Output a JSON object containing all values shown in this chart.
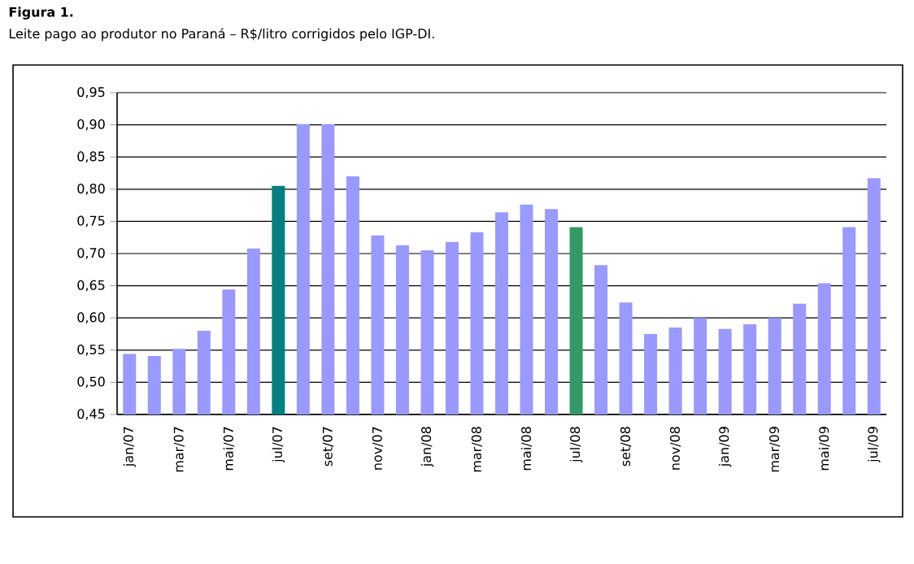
{
  "chart_data": {
    "type": "bar",
    "title": "Figura 1.",
    "subtitle": "Leite pago ao produtor no Paraná – R$/litro corrigidos pelo IGP-DI.",
    "categories": [
      "jan/07",
      null,
      "mar/07",
      null,
      "mai/07",
      null,
      "jul/07",
      null,
      "set/07",
      null,
      "nov/07",
      null,
      "jan/08",
      null,
      "mar/08",
      null,
      "mai/08",
      null,
      "jul/08",
      null,
      "set/08",
      null,
      "nov/08",
      null,
      "jan/09",
      null,
      "mar/09",
      null,
      "mai/09",
      null,
      "jul/09"
    ],
    "values": [
      0.544,
      0.541,
      0.552,
      0.58,
      0.644,
      0.708,
      0.805,
      0.901,
      0.901,
      0.82,
      0.728,
      0.713,
      0.705,
      0.718,
      0.733,
      0.764,
      0.776,
      0.769,
      0.741,
      0.682,
      0.624,
      0.575,
      0.585,
      0.6,
      0.583,
      0.59,
      0.6,
      0.622,
      0.654,
      0.741,
      0.817
    ],
    "colors": [
      "#9999ff",
      "#9999ff",
      "#9999ff",
      "#9999ff",
      "#9999ff",
      "#9999ff",
      "#008080",
      "#9999ff",
      "#9999ff",
      "#9999ff",
      "#9999ff",
      "#9999ff",
      "#9999ff",
      "#9999ff",
      "#9999ff",
      "#9999ff",
      "#9999ff",
      "#9999ff",
      "#339966",
      "#9999ff",
      "#9999ff",
      "#9999ff",
      "#9999ff",
      "#9999ff",
      "#9999ff",
      "#9999ff",
      "#9999ff",
      "#9999ff",
      "#9999ff",
      "#9999ff",
      "#9999ff"
    ],
    "ylim": [
      0.45,
      0.95
    ],
    "yticks": [
      {
        "value": 0.45,
        "label": "0,45"
      },
      {
        "value": 0.5,
        "label": "0,50"
      },
      {
        "value": 0.55,
        "label": "0,55"
      },
      {
        "value": 0.6,
        "label": "0,60"
      },
      {
        "value": 0.65,
        "label": "0,65"
      },
      {
        "value": 0.7,
        "label": "0,70"
      },
      {
        "value": 0.75,
        "label": "0,75"
      },
      {
        "value": 0.8,
        "label": "0,80"
      },
      {
        "value": 0.85,
        "label": "0,85"
      },
      {
        "value": 0.9,
        "label": "0,90"
      },
      {
        "value": 0.95,
        "label": "0,95"
      }
    ],
    "grid": "y"
  }
}
